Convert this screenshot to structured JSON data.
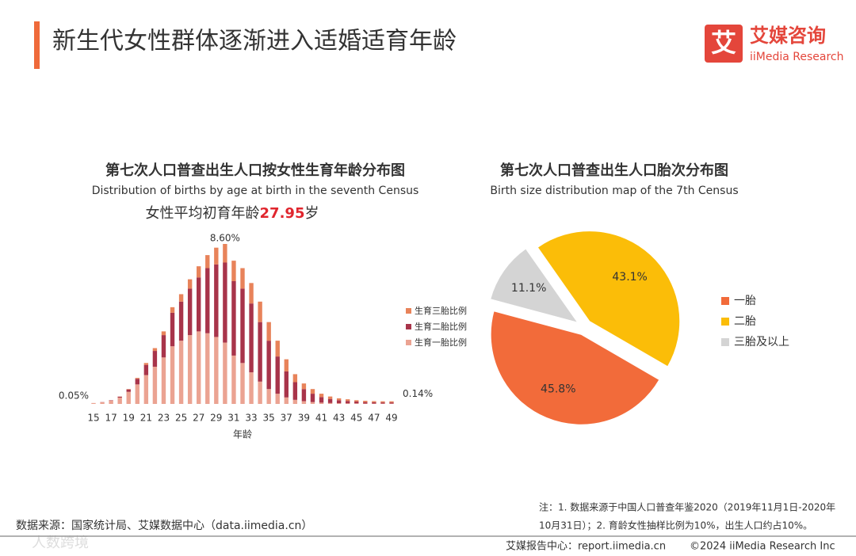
{
  "header": {
    "title": "新生代女性群体逐渐进入适婚适育年龄",
    "logo": {
      "mark": "艾",
      "name": "艾媒咨询",
      "name_en": "iiMedia Research"
    }
  },
  "chart_data": [
    {
      "type": "bar",
      "stacked": true,
      "title": "第七次人口普查出生人口按女性生育年龄分布图",
      "subtitle": "Distribution of births by age at birth in the seventh Census",
      "highlight": {
        "prefix": "女性平均初育年龄",
        "value": "27.95",
        "suffix": "岁"
      },
      "x_label": "年龄",
      "categories": [
        "15",
        null,
        "17",
        null,
        "19",
        null,
        "21",
        null,
        "23",
        null,
        "25",
        null,
        "27",
        null,
        "29",
        null,
        "31",
        null,
        "33",
        null,
        "35",
        null,
        "37",
        null,
        "39",
        null,
        "41",
        null,
        "43",
        null,
        "45",
        null,
        "47",
        null,
        "49"
      ],
      "series": [
        {
          "name": "生育一胎比例",
          "color": "#eba392",
          "values": [
            0.05,
            0.09,
            0.18,
            0.34,
            0.65,
            1.05,
            1.55,
            2.0,
            2.5,
            3.1,
            3.4,
            3.7,
            3.9,
            3.8,
            3.6,
            3.3,
            2.6,
            2.2,
            1.7,
            1.2,
            0.8,
            0.55,
            0.35,
            0.22,
            0.15,
            0.1,
            0.07,
            0.05,
            0.04,
            0.03,
            0.03,
            0.02,
            0.02,
            0.02,
            0.02
          ]
        },
        {
          "name": "生育二胎比例",
          "color": "#a8344a",
          "values": [
            0,
            0.01,
            0.02,
            0.05,
            0.13,
            0.3,
            0.55,
            0.85,
            1.2,
            1.8,
            2.1,
            2.5,
            2.9,
            3.5,
            3.9,
            4.3,
            4.0,
            4.0,
            3.7,
            3.2,
            2.6,
            2.0,
            1.4,
            0.95,
            0.65,
            0.45,
            0.3,
            0.22,
            0.16,
            0.13,
            0.1,
            0.08,
            0.07,
            0.06,
            0.06
          ]
        },
        {
          "name": "生育三胎比例",
          "color": "#e8835a",
          "values": [
            0,
            0,
            0,
            0.01,
            0.02,
            0.05,
            0.1,
            0.15,
            0.2,
            0.3,
            0.4,
            0.5,
            0.6,
            0.7,
            0.9,
            1.0,
            1.1,
            1.1,
            1.1,
            1.1,
            1.0,
            0.85,
            0.65,
            0.43,
            0.3,
            0.25,
            0.18,
            0.13,
            0.1,
            0.09,
            0.07,
            0.07,
            0.06,
            0.06,
            0.06
          ]
        }
      ],
      "annotations": [
        {
          "text": "0.05%",
          "at": 0
        },
        {
          "text": "8.60%",
          "at": 15
        },
        {
          "text": "0.14%",
          "at": 34
        }
      ]
    },
    {
      "type": "pie",
      "title": "第七次人口普查出生人口胎次分布图",
      "subtitle": "Birth size distribution map of the 7th Census",
      "categories": [
        "一胎",
        "二胎",
        "三胎及以上"
      ],
      "values": [
        45.8,
        43.1,
        11.1
      ],
      "value_labels": [
        "45.8%",
        "43.1%",
        "11.1%"
      ],
      "colors": [
        "#f26b3a",
        "#fbbd08",
        "#d4d4d4"
      ]
    }
  ],
  "footer": {
    "source": "数据来源：国家统计局、艾媒数据中心（data.iimedia.cn）",
    "note": [
      "注：1. 数据来源于中国人口普查年鉴2020（2019年11月1日-2020年",
      "10月31日）；2. 育龄女性抽样比例为10%，出生人口约占10%。"
    ],
    "site": "艾媒报告中心：report.iimedia.cn",
    "copyright": "©2024 iiMedia Research Inc",
    "watermark": "人数跨境"
  }
}
